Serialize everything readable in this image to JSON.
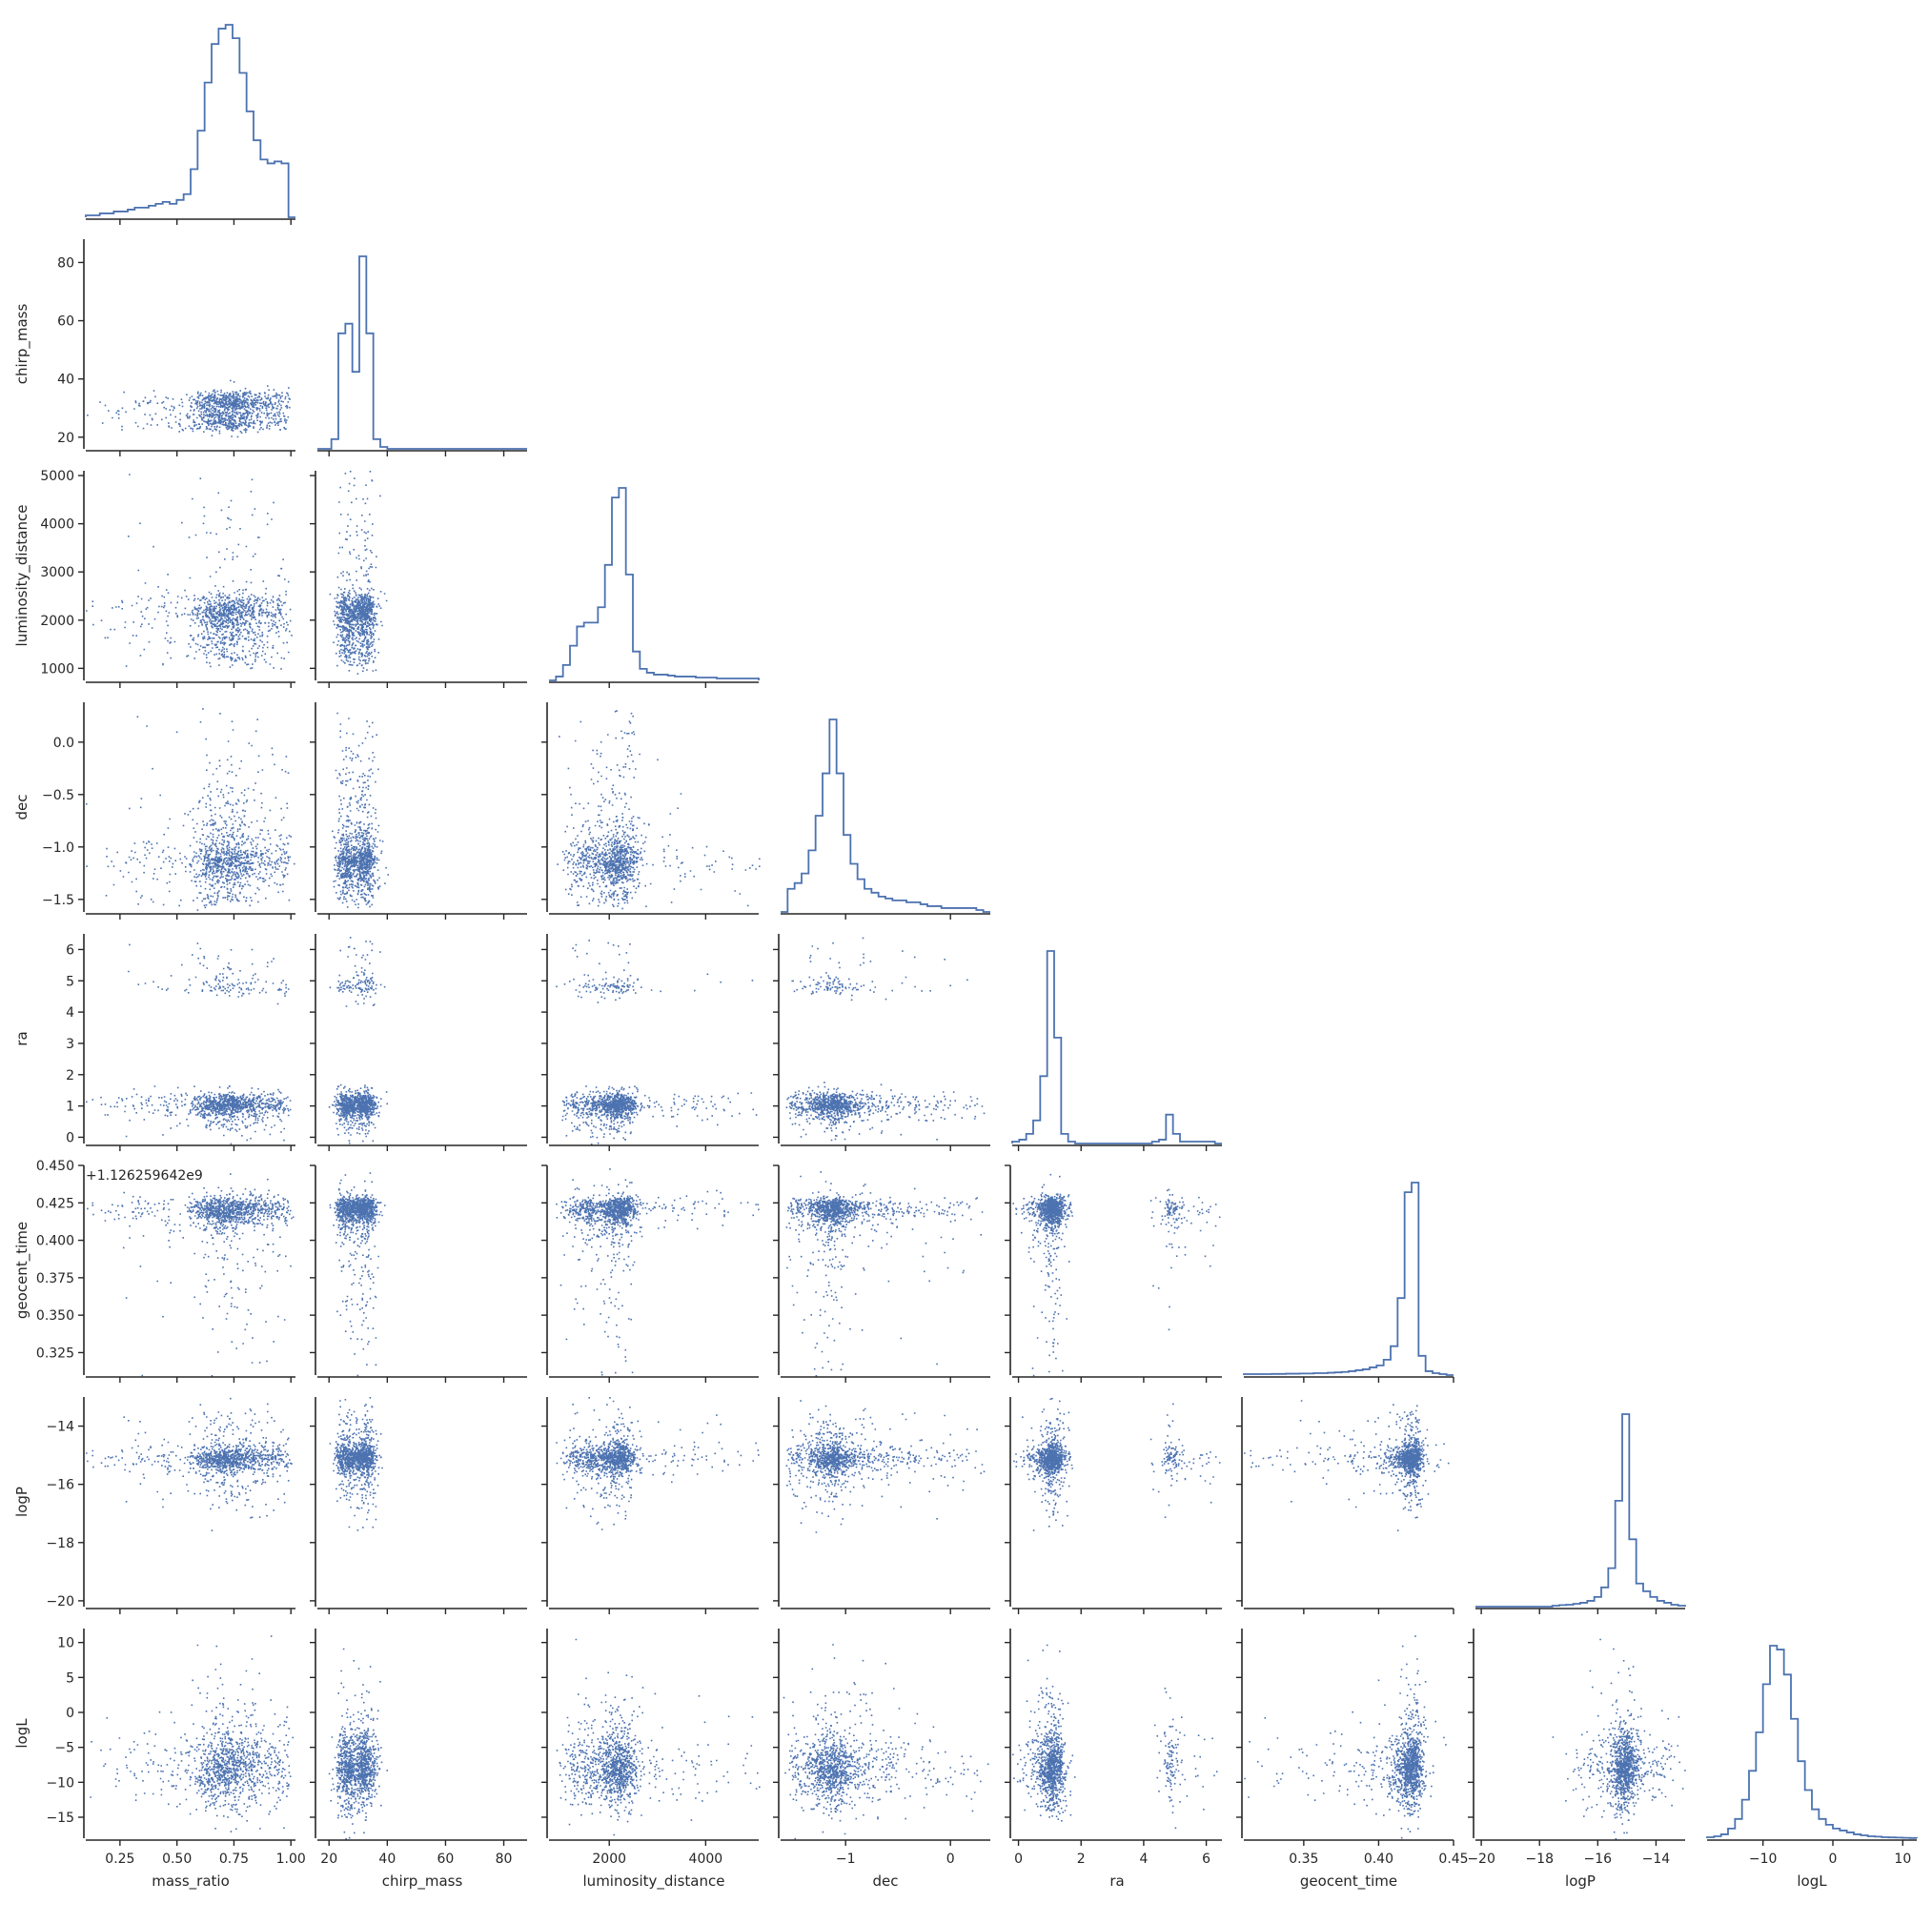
{
  "chart_data": {
    "type": "corner",
    "title": "",
    "grid": false,
    "color": "#4c72b0",
    "offset_text": "+1.126259642e9",
    "parameters": [
      {
        "name": "mass_ratio",
        "xlabel": "mass_ratio",
        "ylabel": "",
        "range": [
          0.1,
          1.02
        ],
        "ticks": [
          0.25,
          0.5,
          0.75,
          1.0
        ],
        "tick_labels": [
          "0.25",
          "0.50",
          "0.75",
          "1.00"
        ]
      },
      {
        "name": "chirp_mass",
        "xlabel": "chirp_mass",
        "ylabel": "chirp_mass",
        "range": [
          16,
          88
        ],
        "ticks": [
          20,
          40,
          60,
          80
        ],
        "tick_labels": [
          "20",
          "40",
          "60",
          "80"
        ]
      },
      {
        "name": "luminosity_distance",
        "xlabel": "luminosity_distance",
        "ylabel": "luminosity_distance",
        "range": [
          750,
          5100
        ],
        "ticks": [
          1000,
          2000,
          3000,
          4000,
          5000
        ],
        "tick_labels": [
          "1000",
          "2000",
          "3000",
          "4000",
          "5000"
        ],
        "x_ticks": [
          2000,
          4000
        ],
        "x_tick_labels": [
          "2000",
          "4000"
        ]
      },
      {
        "name": "dec",
        "xlabel": "dec",
        "ylabel": "dec",
        "range": [
          -1.62,
          0.38
        ],
        "ticks": [
          -1.5,
          -1.0,
          -0.5,
          0.0
        ],
        "tick_labels": [
          "−1.5",
          "−1.0",
          "−0.5",
          "0.0"
        ],
        "x_ticks": [
          -1,
          0
        ],
        "x_tick_labels": [
          "−1",
          "0"
        ]
      },
      {
        "name": "ra",
        "xlabel": "ra",
        "ylabel": "ra",
        "range": [
          -0.2,
          6.5
        ],
        "ticks": [
          0,
          1,
          2,
          3,
          4,
          5,
          6
        ],
        "tick_labels": [
          "0",
          "1",
          "2",
          "3",
          "4",
          "5",
          "6"
        ],
        "x_ticks": [
          0,
          2,
          4,
          6
        ],
        "x_tick_labels": [
          "0",
          "2",
          "4",
          "6"
        ]
      },
      {
        "name": "geocent_time",
        "xlabel": "geocent_time",
        "ylabel": "geocent_time",
        "range": [
          0.31,
          0.45
        ],
        "ticks": [
          0.325,
          0.35,
          0.375,
          0.4,
          0.425,
          0.45
        ],
        "tick_labels": [
          "0.325",
          "0.350",
          "0.375",
          "0.400",
          "0.425",
          "0.450"
        ],
        "x_ticks": [
          0.35,
          0.4,
          0.45
        ],
        "x_tick_labels": [
          "0.35",
          "0.40",
          "0.45"
        ]
      },
      {
        "name": "logP",
        "xlabel": "logP",
        "ylabel": "logP",
        "range": [
          -20.2,
          -13.0
        ],
        "ticks": [
          -20,
          -18,
          -16,
          -14
        ],
        "tick_labels": [
          "−20",
          "−18",
          "−16",
          "−14"
        ]
      },
      {
        "name": "logL",
        "xlabel": "logL",
        "ylabel": "logL",
        "range": [
          -18,
          12
        ],
        "ticks": [
          -15,
          -10,
          -5,
          0,
          5,
          10
        ],
        "tick_labels": [
          "−15",
          "−10",
          "−5",
          "0",
          "5",
          "10"
        ],
        "x_ticks": [
          -10,
          0,
          10
        ],
        "x_tick_labels": [
          "−10",
          "0",
          "10"
        ]
      }
    ],
    "histograms": [
      [
        0.01,
        0.01,
        0.02,
        0.02,
        0.03,
        0.03,
        0.04,
        0.05,
        0.05,
        0.06,
        0.07,
        0.08,
        0.07,
        0.09,
        0.12,
        0.25,
        0.45,
        0.7,
        0.9,
        0.98,
        1.0,
        0.93,
        0.75,
        0.55,
        0.4,
        0.3,
        0.28,
        0.29,
        0.28,
        0.0
      ],
      [
        0,
        0,
        0.05,
        0.6,
        0.65,
        0.4,
        1.0,
        0.6,
        0.05,
        0.01,
        0,
        0,
        0,
        0,
        0,
        0,
        0,
        0,
        0,
        0,
        0,
        0,
        0,
        0,
        0,
        0,
        0,
        0,
        0,
        0
      ],
      [
        0,
        0.02,
        0.08,
        0.18,
        0.28,
        0.3,
        0.3,
        0.38,
        0.6,
        0.95,
        1.0,
        0.55,
        0.15,
        0.06,
        0.04,
        0.03,
        0.03,
        0.025,
        0.02,
        0.02,
        0.02,
        0.015,
        0.015,
        0.015,
        0.01,
        0.01,
        0.01,
        0.01,
        0.01,
        0.01
      ],
      [
        0,
        0.12,
        0.15,
        0.2,
        0.32,
        0.5,
        0.72,
        1.0,
        0.72,
        0.4,
        0.25,
        0.17,
        0.12,
        0.1,
        0.08,
        0.07,
        0.06,
        0.06,
        0.05,
        0.05,
        0.04,
        0.03,
        0.03,
        0.02,
        0.02,
        0.02,
        0.02,
        0.02,
        0.01,
        0.0
      ],
      [
        0.01,
        0.02,
        0.05,
        0.12,
        0.35,
        1.0,
        0.55,
        0.05,
        0.01,
        0,
        0,
        0,
        0,
        0,
        0,
        0,
        0,
        0,
        0,
        0,
        0.01,
        0.02,
        0.15,
        0.05,
        0.01,
        0.01,
        0.01,
        0.01,
        0.01,
        0
      ],
      [
        0.005,
        0.005,
        0.005,
        0.005,
        0.006,
        0.006,
        0.007,
        0.007,
        0.008,
        0.008,
        0.01,
        0.01,
        0.012,
        0.014,
        0.016,
        0.02,
        0.025,
        0.03,
        0.04,
        0.05,
        0.08,
        0.15,
        0.4,
        0.95,
        1.0,
        0.1,
        0.02,
        0.01,
        0.005,
        0.0
      ],
      [
        0,
        0,
        0,
        0,
        0,
        0,
        0,
        0,
        0,
        0,
        0,
        0.005,
        0.008,
        0.01,
        0.015,
        0.02,
        0.03,
        0.05,
        0.1,
        0.2,
        0.55,
        1.0,
        0.35,
        0.12,
        0.08,
        0.05,
        0.03,
        0.02,
        0.01,
        0.005
      ],
      [
        0.005,
        0.01,
        0.02,
        0.05,
        0.1,
        0.2,
        0.35,
        0.55,
        0.8,
        1.0,
        0.98,
        0.85,
        0.62,
        0.4,
        0.25,
        0.15,
        0.1,
        0.07,
        0.05,
        0.04,
        0.03,
        0.02,
        0.015,
        0.01,
        0.008,
        0.005,
        0.004,
        0.003,
        0.002,
        0.001
      ]
    ],
    "sample_points_note": ""
  }
}
